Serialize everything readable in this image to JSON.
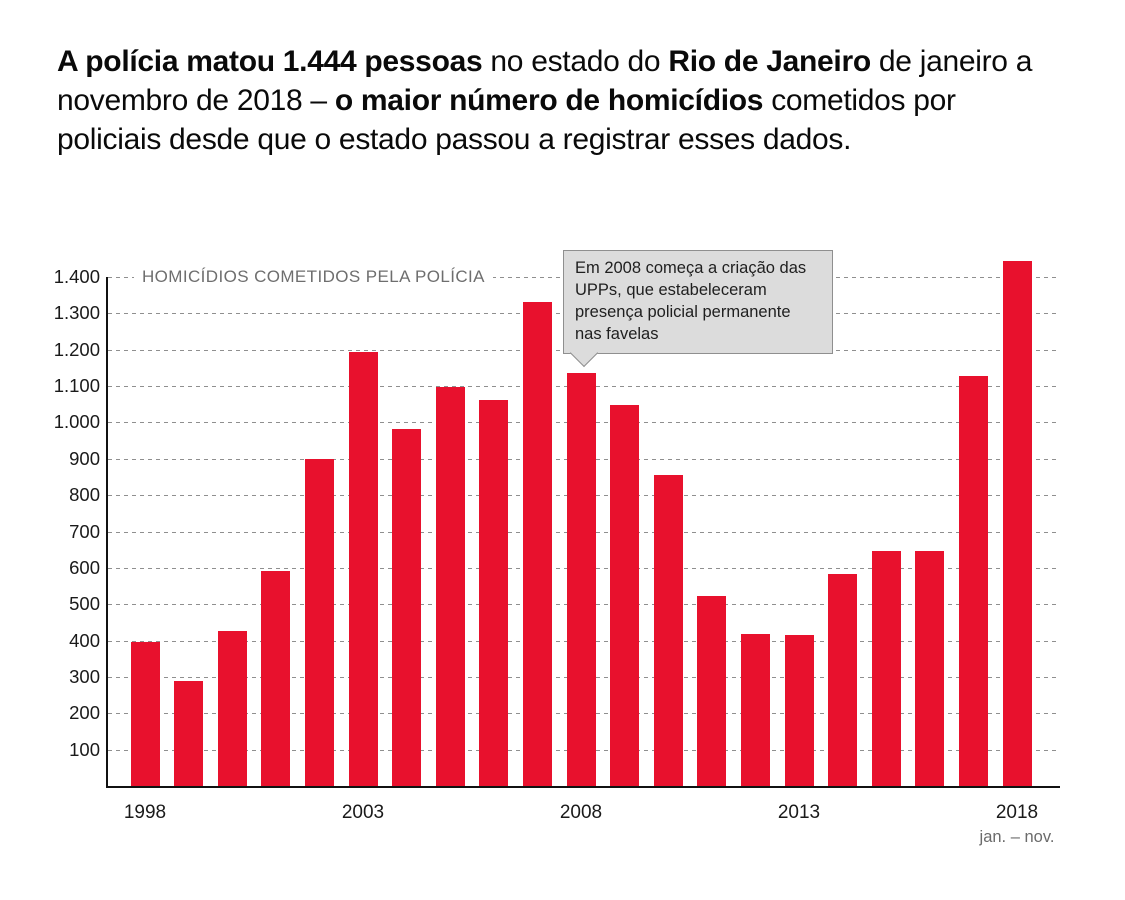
{
  "headline": {
    "segments": [
      "A polícia matou 1.444 pessoas",
      " no estado do ",
      "Rio de Janeiro",
      " de janeiro a novembro de 2018 – ",
      "o maior número de homicídios",
      " cometidos por policiais desde que o estado passou a registrar esses dados."
    ]
  },
  "chart_data": {
    "type": "bar",
    "title": "HOMICÍDIOS COMETIDOS PELA POLÍCIA",
    "xlabel": "",
    "ylabel": "",
    "ylim": [
      0,
      1400
    ],
    "ytick_step": 100,
    "yticks": [
      {
        "value": 100,
        "label": "100"
      },
      {
        "value": 200,
        "label": "200"
      },
      {
        "value": 300,
        "label": "300"
      },
      {
        "value": 400,
        "label": "400"
      },
      {
        "value": 500,
        "label": "500"
      },
      {
        "value": 600,
        "label": "600"
      },
      {
        "value": 700,
        "label": "700"
      },
      {
        "value": 800,
        "label": "800"
      },
      {
        "value": 900,
        "label": "900"
      },
      {
        "value": 1000,
        "label": "1.000"
      },
      {
        "value": 1100,
        "label": "1.100"
      },
      {
        "value": 1200,
        "label": "1.200"
      },
      {
        "value": 1300,
        "label": "1.300"
      },
      {
        "value": 1400,
        "label": "1.400"
      }
    ],
    "grid": true,
    "legend": "none",
    "categories": [
      "1998",
      "1999",
      "2000",
      "2001",
      "2002",
      "2003",
      "2004",
      "2005",
      "2006",
      "2007",
      "2008",
      "2009",
      "2010",
      "2011",
      "2012",
      "2013",
      "2014",
      "2015",
      "2016",
      "2017",
      "2018"
    ],
    "values": [
      397,
      289,
      427,
      592,
      900,
      1195,
      983,
      1098,
      1063,
      1330,
      1137,
      1048,
      855,
      523,
      419,
      416,
      584,
      645,
      646,
      1127,
      1444
    ],
    "bar_color": "#e8112d",
    "x_ticks": [
      {
        "label": "1998",
        "index": 0
      },
      {
        "label": "2003",
        "index": 5
      },
      {
        "label": "2008",
        "index": 10
      },
      {
        "label": "2013",
        "index": 15
      },
      {
        "label": "2018",
        "index": 20,
        "sublabel": "jan. – nov."
      }
    ],
    "annotation": {
      "text": "Em 2008 começa a criação das\nUPPs, que estabeleceram\npresença policial permanente\nnas favelas",
      "target_year": "2008"
    }
  }
}
